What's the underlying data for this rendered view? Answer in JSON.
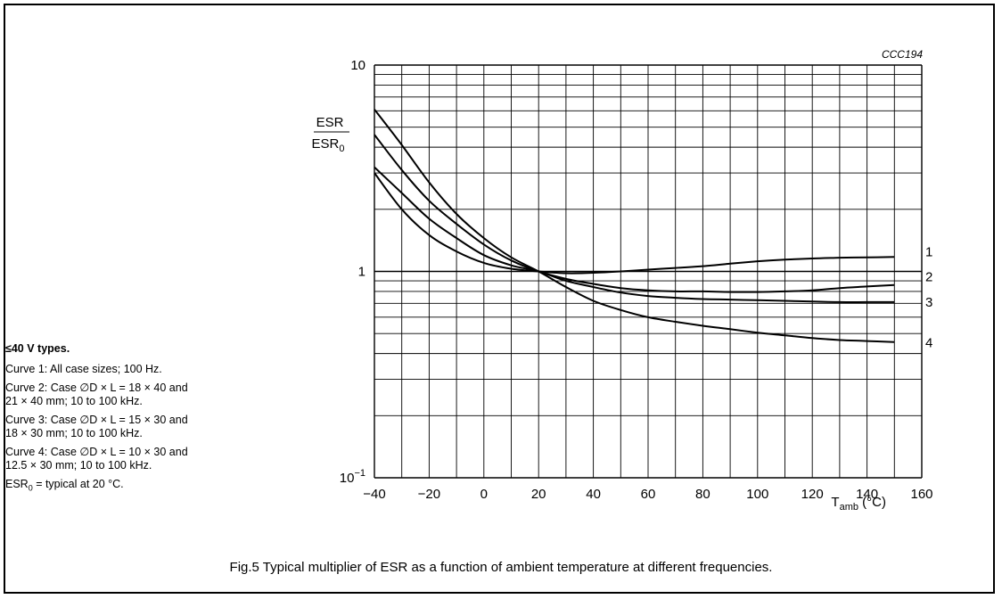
{
  "notes": {
    "heading": "≤40 V types.",
    "curve1": "Curve 1: All case sizes; 100 Hz.",
    "curve2_a": "Curve 2: Case ∅D × L = 18 × 40 and",
    "curve2_b": "21 × 40 mm; 10 to 100 kHz.",
    "curve3_a": "Curve 3: Case ∅D × L = 15 × 30 and",
    "curve3_b": "18 × 30 mm; 10 to 100 kHz.",
    "curve4_a": "Curve 4: Case ∅D × L = 10 × 30 and",
    "curve4_b": "12.5 × 30 mm; 10 to 100 kHz.",
    "esr0_main": "ESR",
    "esr0_sub": "0",
    "esr0_rest": " = typical at 20 °C."
  },
  "caption": "Fig.5  Typical multiplier of ESR as a function of ambient temperature at different frequencies.",
  "chart_data": {
    "type": "line",
    "reference_code": "CCC194",
    "ylabel_numerator": "ESR",
    "ylabel_denominator_main": "ESR",
    "ylabel_denominator_sub": "0",
    "xlabel_main": "T",
    "xlabel_sub": "amb",
    "xlabel_unit": "(°C)",
    "x_range": [
      -40,
      160
    ],
    "y_range": [
      0.1,
      10
    ],
    "y_scale": "log",
    "grid": true,
    "x_tick_labels": [
      "−40",
      "−20",
      "0",
      "20",
      "40",
      "60",
      "80",
      "100",
      "120",
      "140",
      "160"
    ],
    "x_tick_values": [
      -40,
      -20,
      0,
      20,
      40,
      60,
      80,
      100,
      120,
      140,
      160
    ],
    "y_tick_labels": [
      {
        "value": 10,
        "base": "10",
        "exp": ""
      },
      {
        "value": 1,
        "base": "1",
        "exp": ""
      },
      {
        "value": 0.1,
        "base": "10",
        "exp": "−1"
      }
    ],
    "series": [
      {
        "name": "1",
        "points": [
          [
            -40,
            3.0
          ],
          [
            -30,
            2.0
          ],
          [
            -20,
            1.5
          ],
          [
            -10,
            1.25
          ],
          [
            0,
            1.1
          ],
          [
            10,
            1.03
          ],
          [
            20,
            1.0
          ],
          [
            30,
            0.98
          ],
          [
            40,
            0.985
          ],
          [
            50,
            1.0
          ],
          [
            60,
            1.02
          ],
          [
            70,
            1.04
          ],
          [
            80,
            1.06
          ],
          [
            90,
            1.09
          ],
          [
            100,
            1.12
          ],
          [
            110,
            1.14
          ],
          [
            120,
            1.155
          ],
          [
            130,
            1.165
          ],
          [
            140,
            1.17
          ],
          [
            150,
            1.175
          ]
        ]
      },
      {
        "name": "2",
        "points": [
          [
            -40,
            4.6
          ],
          [
            -30,
            3.1
          ],
          [
            -20,
            2.2
          ],
          [
            -10,
            1.7
          ],
          [
            0,
            1.35
          ],
          [
            10,
            1.13
          ],
          [
            20,
            1.0
          ],
          [
            30,
            0.92
          ],
          [
            40,
            0.87
          ],
          [
            50,
            0.83
          ],
          [
            60,
            0.81
          ],
          [
            70,
            0.8
          ],
          [
            80,
            0.8
          ],
          [
            90,
            0.795
          ],
          [
            100,
            0.795
          ],
          [
            110,
            0.8
          ],
          [
            120,
            0.81
          ],
          [
            130,
            0.83
          ],
          [
            140,
            0.845
          ],
          [
            150,
            0.86
          ]
        ]
      },
      {
        "name": "3",
        "points": [
          [
            -40,
            3.2
          ],
          [
            -30,
            2.4
          ],
          [
            -20,
            1.8
          ],
          [
            -10,
            1.45
          ],
          [
            0,
            1.2
          ],
          [
            10,
            1.07
          ],
          [
            20,
            1.0
          ],
          [
            30,
            0.9
          ],
          [
            40,
            0.84
          ],
          [
            50,
            0.79
          ],
          [
            60,
            0.76
          ],
          [
            70,
            0.745
          ],
          [
            80,
            0.735
          ],
          [
            90,
            0.73
          ],
          [
            100,
            0.725
          ],
          [
            110,
            0.72
          ],
          [
            120,
            0.715
          ],
          [
            130,
            0.71
          ],
          [
            140,
            0.71
          ],
          [
            150,
            0.71
          ]
        ]
      },
      {
        "name": "4",
        "points": [
          [
            -40,
            6.1
          ],
          [
            -30,
            4.1
          ],
          [
            -20,
            2.7
          ],
          [
            -10,
            1.9
          ],
          [
            0,
            1.45
          ],
          [
            10,
            1.17
          ],
          [
            20,
            1.0
          ],
          [
            30,
            0.84
          ],
          [
            40,
            0.72
          ],
          [
            50,
            0.65
          ],
          [
            60,
            0.6
          ],
          [
            70,
            0.57
          ],
          [
            80,
            0.545
          ],
          [
            90,
            0.525
          ],
          [
            100,
            0.505
          ],
          [
            110,
            0.49
          ],
          [
            120,
            0.475
          ],
          [
            130,
            0.465
          ],
          [
            140,
            0.46
          ],
          [
            150,
            0.455
          ]
        ]
      }
    ]
  }
}
